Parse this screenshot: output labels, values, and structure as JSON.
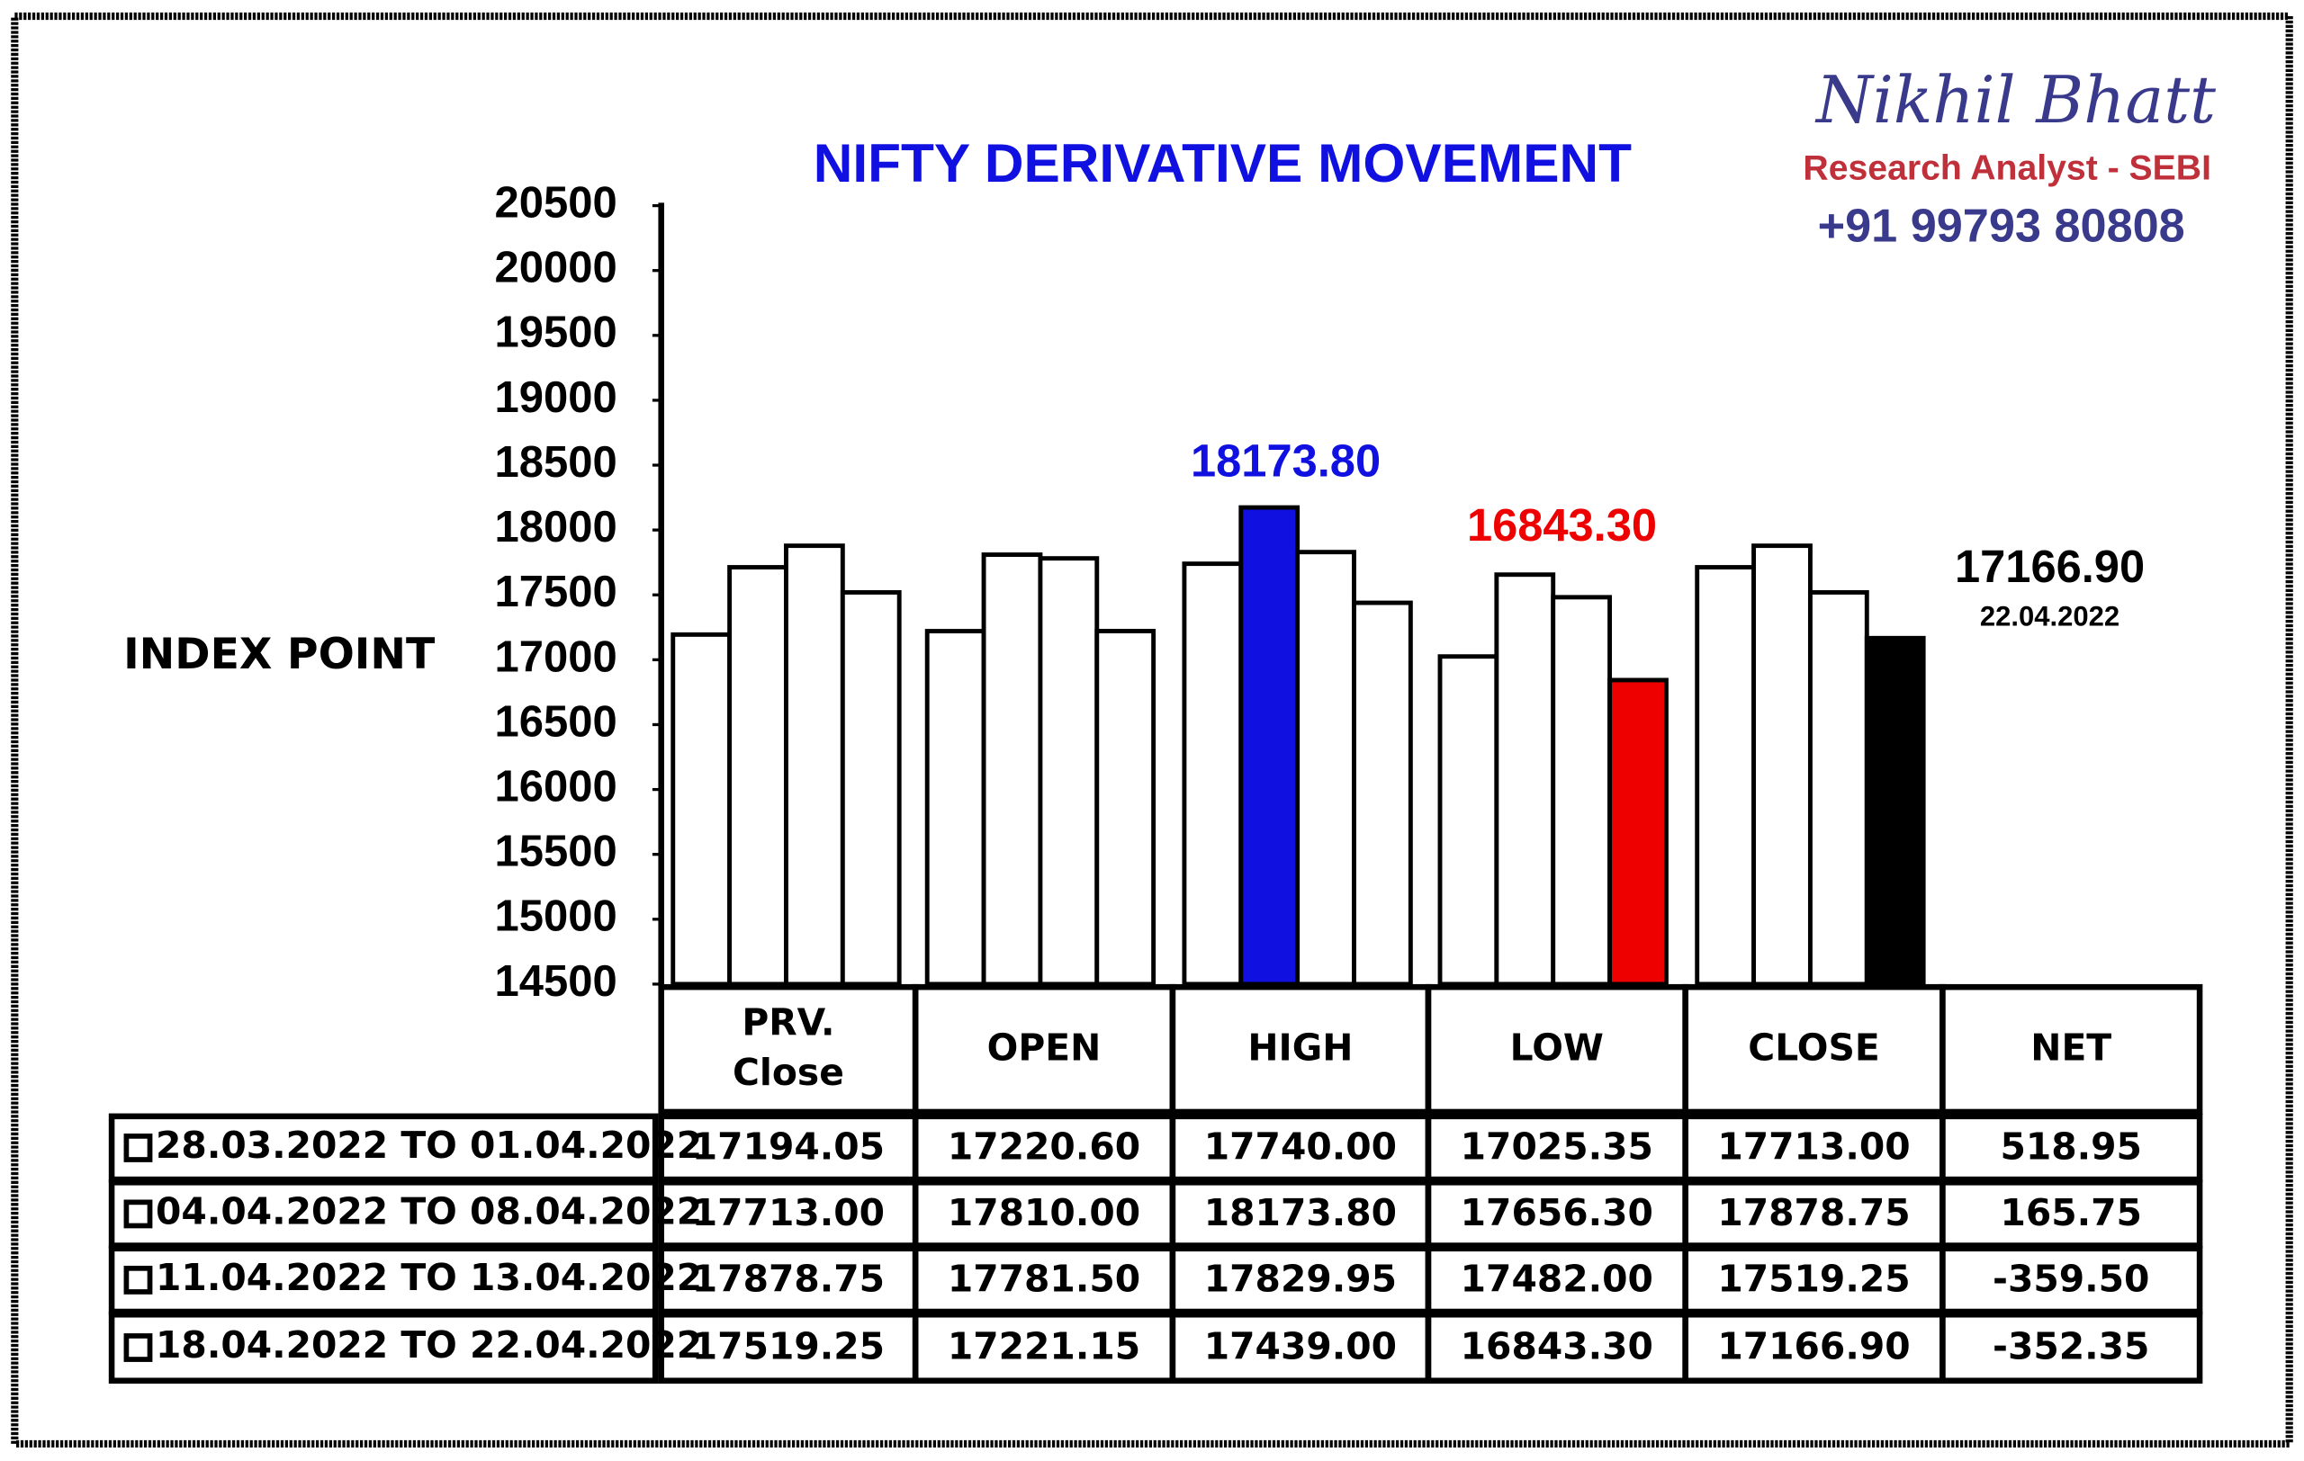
{
  "header": {
    "name": "Nikhil Bhatt",
    "role": "Research Analyst - SEBI",
    "phone": "+91 99793 80808"
  },
  "chart_data": {
    "type": "bar",
    "title": "NIFTY DERIVATIVE MOVEMENT",
    "y_label": "INDEX POINT",
    "categories": [
      "PRV. Close",
      "OPEN",
      "HIGH",
      "LOW",
      "CLOSE",
      "NET"
    ],
    "series": [
      {
        "name": "28.03.2022 TO 01.04.2022",
        "color": "#ffffff",
        "values": [
          17194.05,
          17220.6,
          17740,
          17025.35,
          17713,
          518.95
        ],
        "value_labels": [
          "17194.05",
          "17220.60",
          "17740.00",
          "17025.35",
          "17713.00",
          "518.95"
        ]
      },
      {
        "name": "04.04.2022 TO 08.04.2022",
        "color": "#ffffff",
        "values": [
          17713,
          17810,
          18173.8,
          17656.3,
          17878.75,
          165.75
        ],
        "value_labels": [
          "17713.00",
          "17810.00",
          "18173.80",
          "17656.30",
          "17878.75",
          "165.75"
        ]
      },
      {
        "name": "11.04.2022 TO 13.04.2022",
        "color": "#ffffff",
        "values": [
          17878.75,
          17781.5,
          17829.95,
          17482,
          17519.25,
          -359.5
        ],
        "value_labels": [
          "17878.75",
          "17781.50",
          "17829.95",
          "17482.00",
          "17519.25",
          "-359.50"
        ]
      },
      {
        "name": "18.04.2022 TO 22.04.2022",
        "color": "#ffffff",
        "values": [
          17519.25,
          17221.15,
          17439,
          16843.3,
          17166.9,
          -352.35
        ],
        "value_labels": [
          "17519.25",
          "17221.15",
          "17439.00",
          "16843.30",
          "17166.90",
          "-352.35"
        ]
      }
    ],
    "bar_categories": 5,
    "annotations": [
      {
        "text": "18173.80",
        "series": 1,
        "category": 2,
        "color": "#1010e0"
      },
      {
        "text": "16843.30",
        "series": 3,
        "category": 3,
        "color": "#ee0000"
      },
      {
        "text": "17166.90",
        "note": "22.04.2022",
        "series": 3,
        "category": 4,
        "color": "#000000"
      }
    ],
    "ylim": [
      14500,
      20500
    ],
    "yticks": [
      14500,
      15000,
      15500,
      16000,
      16500,
      17000,
      17500,
      18000,
      18500,
      19000,
      19500,
      20000,
      20500
    ]
  }
}
